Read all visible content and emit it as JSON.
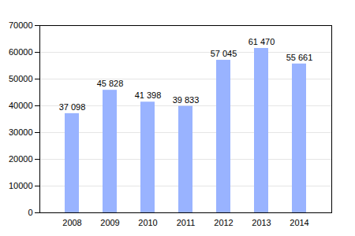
{
  "chart_data": {
    "type": "bar",
    "categories": [
      "2008",
      "2009",
      "2010",
      "2011",
      "2012",
      "2013",
      "2014"
    ],
    "values": [
      37098,
      45828,
      41398,
      39833,
      57045,
      61470,
      55661
    ],
    "value_labels": [
      "37 098",
      "45 828",
      "41 398",
      "39 833",
      "57 045",
      "61 470",
      "55 661"
    ],
    "color": "#99b3ff",
    "ylim": [
      0,
      70000
    ],
    "yticks": [
      0,
      10000,
      20000,
      30000,
      40000,
      50000,
      60000,
      70000
    ],
    "grid": true,
    "data_labels": true
  }
}
